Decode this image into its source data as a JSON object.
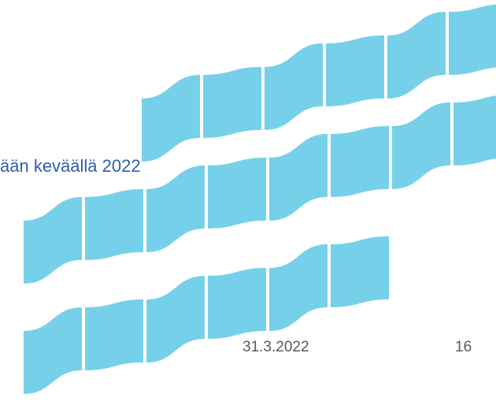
{
  "slide": {
    "text_fragment": "ään keväällä 2022",
    "date": "31.3.2022",
    "page_number": "16"
  }
}
